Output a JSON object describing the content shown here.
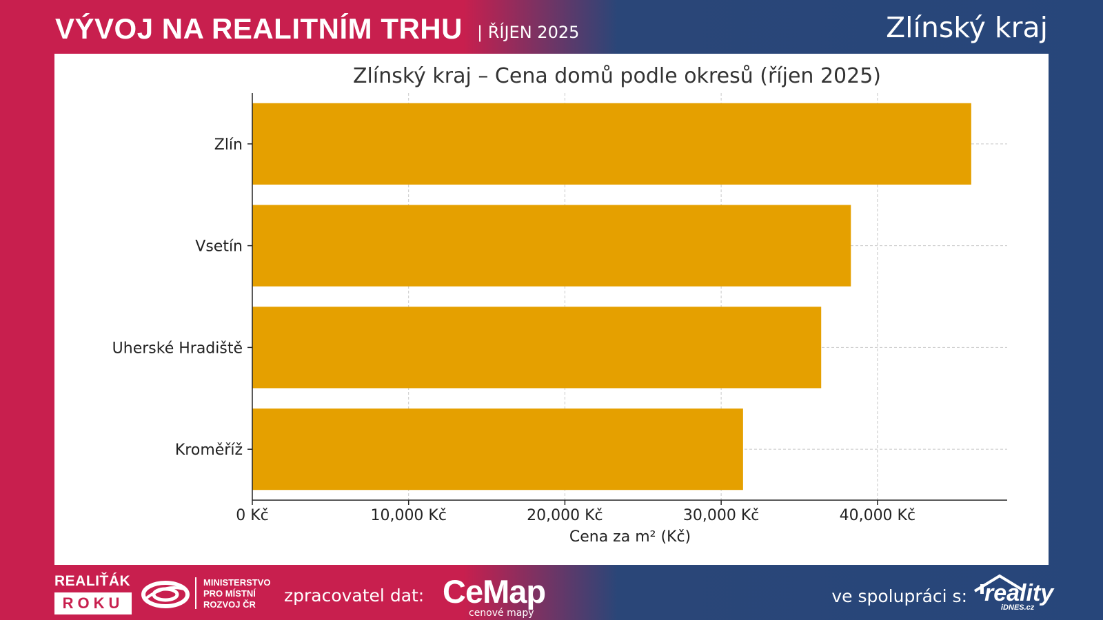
{
  "header": {
    "title": "VÝVOJ NA REALITNÍM TRHU",
    "date": "| ŘÍJEN 2025",
    "region": "Zlínský kraj"
  },
  "chart_data": {
    "type": "bar",
    "orientation": "horizontal",
    "title": "Zlínský kraj – Cena domů podle okresů (říjen 2025)",
    "xlabel": "Cena za m² (Kč)",
    "ylabel": "",
    "categories": [
      "Zlín",
      "Vsetín",
      "Uherské Hradiště",
      "Kroměříž"
    ],
    "values": [
      46000,
      38300,
      36400,
      31400
    ],
    "xlim": [
      0,
      48300
    ],
    "xticks": [
      0,
      10000,
      20000,
      30000,
      40000
    ],
    "xtick_labels": [
      "0 Kč",
      "10,000 Kč",
      "20,000 Kč",
      "30,000 Kč",
      "40,000 Kč"
    ],
    "bar_color": "#e5a000",
    "grid": true
  },
  "footer": {
    "realitak_top": "REALIŤÁK",
    "realitak_box": "ROKU",
    "ministry_lines": [
      "MINISTERSTVO",
      "PRO MÍSTNÍ",
      "ROZVOJ ČR"
    ],
    "processor_label": "zpracovatel dat:",
    "cemap_brand": "CeMap",
    "cemap_sub": "cenové mapy",
    "coop_label": "ve spolupráci s:",
    "reality_word": "reality",
    "reality_sub": "iDNES.cz"
  },
  "colors": {
    "brand_red": "#c81f4e",
    "brand_blue": "#27467a",
    "bar": "#e5a000"
  },
  "icons": [
    "realitak-roku-logo",
    "mmr-ministry-logo",
    "cemap-pin-logo",
    "reality-idnes-house-logo"
  ]
}
